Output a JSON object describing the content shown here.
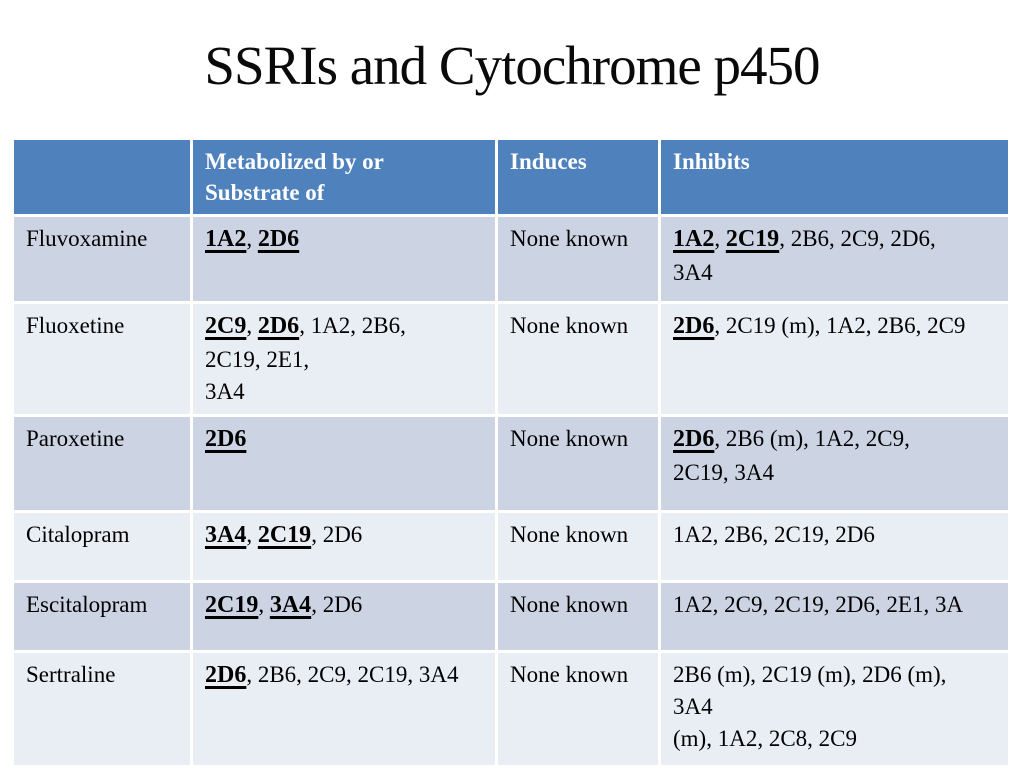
{
  "slide": {
    "title": "SSRIs and Cytochrome p450"
  },
  "colors": {
    "header_background": "#4f81bd",
    "header_text": "#ffffff",
    "row_band_dark": "#ccd3e3",
    "row_band_light": "#e9edf4",
    "body_text": "#000000",
    "title_text": "#0a0a0a"
  },
  "table": {
    "header": {
      "drug": "",
      "metabolized": "Metabolized by or\nSubstrate of",
      "induces": "Induces",
      "inhibits": "Inhibits"
    },
    "rows": [
      {
        "drug": "Fluvoxamine",
        "metabolized": [
          {
            "t": "1A2",
            "key": true
          },
          {
            "t": ", "
          },
          {
            "t": "2D6",
            "key": true
          }
        ],
        "induces": "None known",
        "inhibits": [
          {
            "t": "1A2",
            "key": true
          },
          {
            "t": ", "
          },
          {
            "t": "2C19",
            "key": true
          },
          {
            "t": ", 2B6, 2C9, 2D6,"
          },
          {
            "br": true
          },
          {
            "t": "3A4"
          }
        ]
      },
      {
        "drug": "Fluoxetine",
        "metabolized": [
          {
            "t": "2C9",
            "key": true
          },
          {
            "t": ", "
          },
          {
            "t": "2D6",
            "key": true
          },
          {
            "t": ", 1A2, 2B6,"
          },
          {
            "br": true
          },
          {
            "t": "2C19, 2E1,"
          },
          {
            "br": true
          },
          {
            "t": "3A4"
          }
        ],
        "induces": "None known",
        "inhibits": [
          {
            "t": "2D6",
            "key": true
          },
          {
            "t": ", 2C19 (m), 1A2, 2B6, 2C9"
          }
        ]
      },
      {
        "drug": "Paroxetine",
        "metabolized": [
          {
            "t": "2D6",
            "key": true
          }
        ],
        "induces": "None known",
        "inhibits": [
          {
            "t": "2D6",
            "key": true
          },
          {
            "t": ", 2B6 (m), 1A2, 2C9,"
          },
          {
            "br": true
          },
          {
            "t": "2C19, 3A4"
          }
        ]
      },
      {
        "drug": "Citalopram",
        "metabolized": [
          {
            "t": "3A4",
            "key": true
          },
          {
            "t": ", "
          },
          {
            "t": "2C19",
            "key": true
          },
          {
            "t": ", 2D6"
          }
        ],
        "induces": "None known",
        "inhibits": [
          {
            "t": "1A2, 2B6, 2C19, 2D6"
          }
        ]
      },
      {
        "drug": "Escitalopram",
        "metabolized": [
          {
            "t": "2C19",
            "key": true
          },
          {
            "t": ", "
          },
          {
            "t": "3A4",
            "key": true
          },
          {
            "t": ", 2D6"
          }
        ],
        "induces": "None known",
        "inhibits": [
          {
            "t": "1A2, 2C9, 2C19, 2D6, 2E1, 3A"
          }
        ]
      },
      {
        "drug": "Sertraline",
        "metabolized": [
          {
            "t": "2D6",
            "key": true
          },
          {
            "t": ", 2B6, 2C9, 2C19, 3A4"
          }
        ],
        "induces": "None known",
        "inhibits": [
          {
            "t": "2B6 (m), 2C19 (m), 2D6 (m),"
          },
          {
            "br": true
          },
          {
            "t": "3A4"
          },
          {
            "br": true
          },
          {
            "t": "(m), 1A2, 2C8, 2C9"
          }
        ]
      }
    ]
  }
}
